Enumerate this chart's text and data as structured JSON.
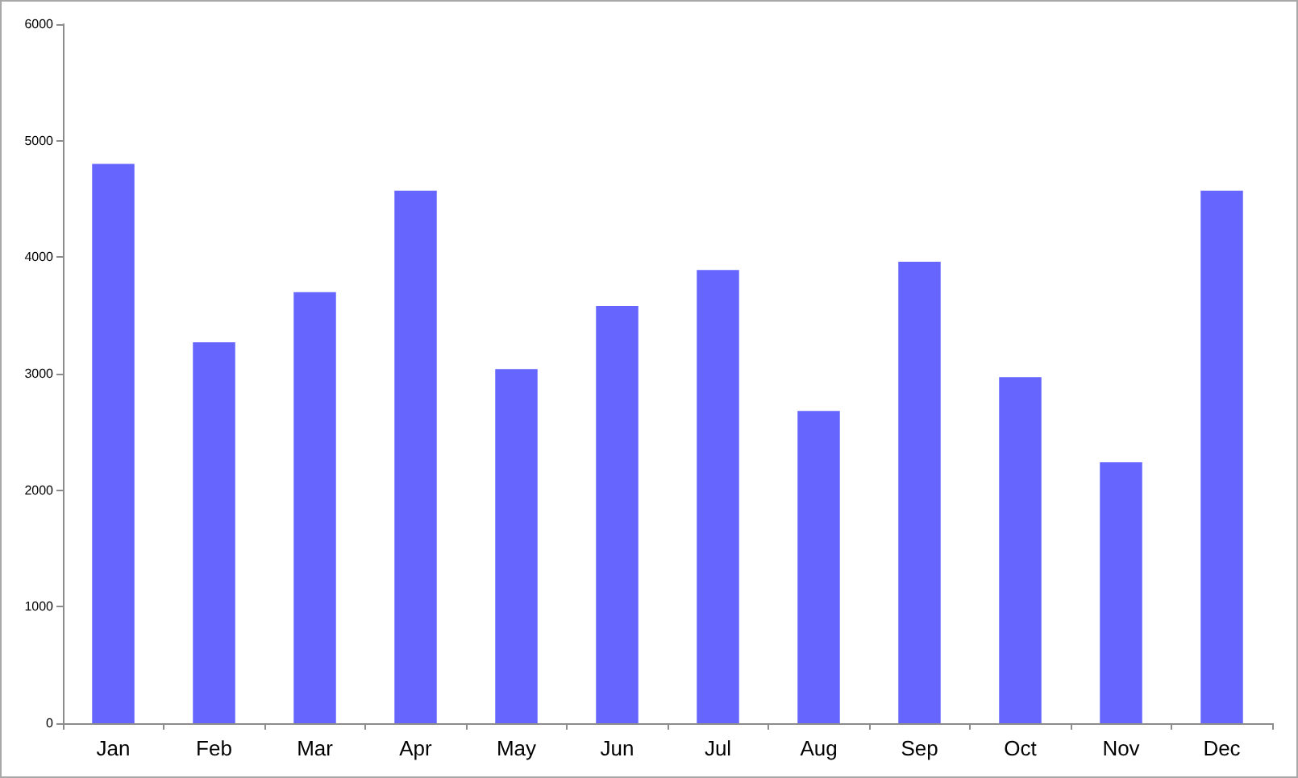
{
  "chart_data": {
    "type": "bar",
    "categories": [
      "Jan",
      "Feb",
      "Mar",
      "Apr",
      "May",
      "Jun",
      "Jul",
      "Aug",
      "Sep",
      "Oct",
      "Nov",
      "Dec"
    ],
    "values": [
      4800,
      3270,
      3700,
      4570,
      3040,
      3580,
      3890,
      2680,
      3960,
      2970,
      2240,
      4570
    ],
    "color": "#6666ff",
    "ylim": [
      0,
      6000
    ],
    "yticks": [
      0,
      1000,
      2000,
      3000,
      4000,
      5000,
      6000
    ]
  }
}
